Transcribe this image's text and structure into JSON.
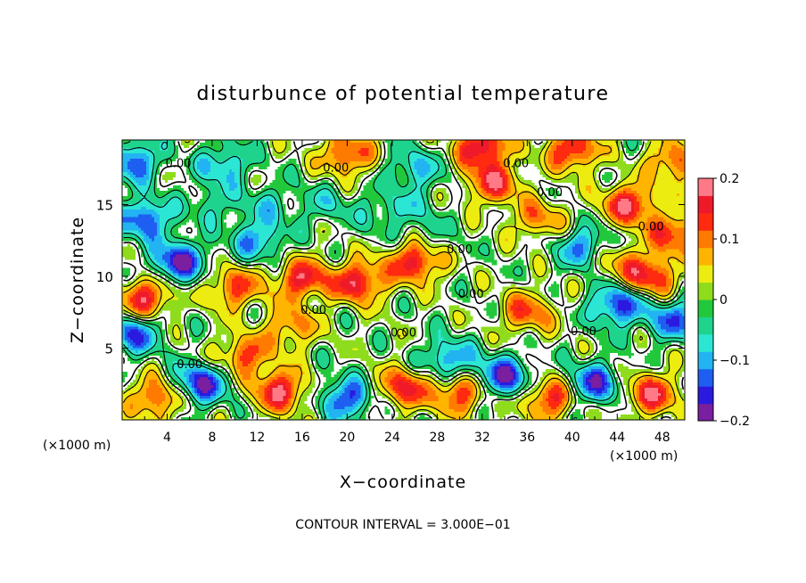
{
  "chart_data": {
    "type": "heatmap",
    "title": "disturbunce of potential temperature",
    "xlabel": "X−coordinate",
    "ylabel": "Z−coordinate",
    "x_unit_label": "(×1000 m)",
    "y_unit_label": "(×1000 m)",
    "footer": "CONTOUR INTERVAL = 3.000E−01",
    "xlim": [
      0,
      50
    ],
    "ylim": [
      0,
      19.5
    ],
    "x_ticks": [
      "4",
      "8",
      "12",
      "16",
      "20",
      "24",
      "28",
      "32",
      "36",
      "40",
      "44",
      "48"
    ],
    "y_ticks": [
      "5",
      "10",
      "15"
    ],
    "colorbar": {
      "range": [
        -0.2,
        0.2
      ],
      "ticks": [
        "0.2",
        "0.1",
        "0",
        "−0.1",
        "−0.2"
      ],
      "colors": [
        "#7a1fa0",
        "#2a1adf",
        "#1e5ef0",
        "#22b4f2",
        "#2ce6d4",
        "#1ed48c",
        "#22c83c",
        "#8edc1c",
        "#ecec10",
        "#ffb400",
        "#ff7a00",
        "#ff2a10",
        "#ee1a2a",
        "#ff7a86"
      ]
    },
    "contour_label": "0.00",
    "contour_label_positions": [
      [
        5,
        17.6
      ],
      [
        19,
        17.3
      ],
      [
        35,
        17.6
      ],
      [
        38,
        15.6
      ],
      [
        47,
        13.2
      ],
      [
        30,
        11.6
      ],
      [
        31,
        8.5
      ],
      [
        17,
        7.4
      ],
      [
        41,
        5.9
      ],
      [
        25,
        5.8
      ],
      [
        6,
        3.6
      ]
    ],
    "anomalies": [
      {
        "x": 8,
        "z": 15,
        "v": -0.055
      },
      {
        "x": 13,
        "z": 15,
        "v": -0.06
      },
      {
        "x": 18,
        "z": 15,
        "v": -0.055
      },
      {
        "x": 23,
        "z": 14.5,
        "v": -0.05
      },
      {
        "x": 26,
        "z": 14.8,
        "v": -0.04
      },
      {
        "x": 27,
        "z": 12.7,
        "v": -0.035
      },
      {
        "x": 26,
        "z": 11,
        "v": 0.17
      },
      {
        "x": 16,
        "z": 9.8,
        "v": 0.16
      },
      {
        "x": 21,
        "z": 9.6,
        "v": 0.17
      },
      {
        "x": 10,
        "z": 9.2,
        "v": 0.13
      },
      {
        "x": 32,
        "z": 19,
        "v": 0.18
      },
      {
        "x": 20,
        "z": 18.5,
        "v": 0.14
      },
      {
        "x": 40,
        "z": 18.8,
        "v": 0.16
      },
      {
        "x": 49,
        "z": 18,
        "v": 0.12
      },
      {
        "x": 1,
        "z": 18,
        "v": -0.14
      },
      {
        "x": 33,
        "z": 16.5,
        "v": 0.15
      },
      {
        "x": 45,
        "z": 15,
        "v": 0.17
      },
      {
        "x": 49,
        "z": 13,
        "v": 0.14
      },
      {
        "x": 41,
        "z": 12,
        "v": -0.12
      },
      {
        "x": 47,
        "z": 10,
        "v": 0.15
      },
      {
        "x": 44,
        "z": 8,
        "v": -0.16
      },
      {
        "x": 49,
        "z": 7,
        "v": -0.13
      },
      {
        "x": 37,
        "z": 14,
        "v": 0.1
      },
      {
        "x": 2,
        "z": 14,
        "v": -0.15
      },
      {
        "x": 5,
        "z": 11,
        "v": -0.18
      },
      {
        "x": 2,
        "z": 8.5,
        "v": 0.16
      },
      {
        "x": 1,
        "z": 6,
        "v": -0.14
      },
      {
        "x": 7,
        "z": 2.5,
        "v": -0.17
      },
      {
        "x": 14,
        "z": 2,
        "v": 0.17
      },
      {
        "x": 20,
        "z": 1.5,
        "v": -0.15
      },
      {
        "x": 25,
        "z": 2.2,
        "v": 0.15
      },
      {
        "x": 30,
        "z": 1.8,
        "v": 0.14
      },
      {
        "x": 34,
        "z": 3,
        "v": -0.17
      },
      {
        "x": 38,
        "z": 1.5,
        "v": 0.15
      },
      {
        "x": 42,
        "z": 2.5,
        "v": -0.16
      },
      {
        "x": 47,
        "z": 1.8,
        "v": 0.16
      },
      {
        "x": 3,
        "z": 1.5,
        "v": 0.13
      },
      {
        "x": 11,
        "z": 4.5,
        "v": 0.13
      },
      {
        "x": 29,
        "z": 4.2,
        "v": -0.12
      },
      {
        "x": 36,
        "z": 7.5,
        "v": 0.12
      },
      {
        "x": 12,
        "z": 12.5,
        "v": -0.11
      },
      {
        "x": 44,
        "z": 11,
        "v": 0.08
      },
      {
        "x": 9,
        "z": 17.8,
        "v": -0.1
      },
      {
        "x": 26,
        "z": 17.5,
        "v": -0.09
      },
      {
        "x": 15,
        "z": 6.5,
        "v": 0.1
      }
    ],
    "grid": false
  }
}
